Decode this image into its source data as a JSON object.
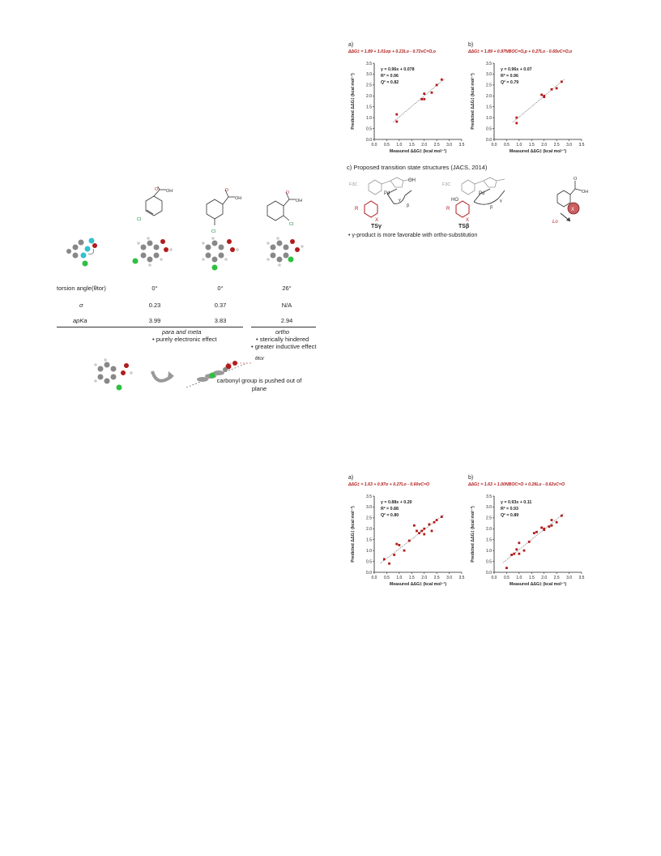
{
  "left_figure": {
    "table": {
      "row_labels": [
        "torsion angle(θtor)",
        "σ",
        "apKa"
      ],
      "columns": [
        {
          "name": "para",
          "substituent": "Cl",
          "torsion": "0°",
          "sigma": "0.23",
          "pka": "3.99"
        },
        {
          "name": "meta",
          "substituent": "Cl",
          "torsion": "0°",
          "sigma": "0.37",
          "pka": "3.83"
        },
        {
          "name": "ortho",
          "substituent": "Cl",
          "torsion": "26°",
          "sigma": "N/A",
          "pka": "2.94"
        }
      ],
      "group_para_meta": "para and meta",
      "group_para_meta_note": "• purely electronic effect",
      "group_ortho": "ortho",
      "group_ortho_note1": "• sterically hindered",
      "group_ortho_note2": "• greater inductive effect"
    },
    "structure_labels": {
      "oh": "OH",
      "o": "O",
      "cl": "Cl"
    },
    "torsion_note": "carbonyl group is pushed out of plane",
    "theta_label": "θtor"
  },
  "top_panels": {
    "a_label": "a)",
    "b_label": "b)",
    "a_equation": "ΔΔG‡ = 1.89 + 1.01σp + 0.23Lo - 0.72νC=O,o",
    "b_equation": "ΔΔG‡ = 1.89 + 0.97NBOC=O,p + 0.27Lo - 0.65νC=O,o",
    "c_label": "c) Proposed transition state structures (JACS, 2014)",
    "c_note": "• γ-product is more favorable with ortho-substitution",
    "ts_gamma": "TSγ",
    "ts_beta": "TSβ",
    "cf3": "F3C",
    "lo": "Lo"
  },
  "bottom_panels": {
    "a_label": "a)",
    "b_label": "b)",
    "a_equation": "ΔΔG‡ = 1.63 + 0.97σ + 0.27Lo - 0.60νC=O",
    "b_equation": "ΔΔG‡ = 1.63 + 1.00NBOC=O + 0.26Lo - 0.62νC=O"
  },
  "chart_data": [
    {
      "type": "scatter",
      "panel": "top-a",
      "xlabel": "Measured ΔΔG‡ (kcal mol⁻¹)",
      "ylabel": "Predicted ΔΔG‡ (kcal mol⁻¹)",
      "xlim": [
        0.0,
        3.5
      ],
      "ylim": [
        0.0,
        3.5
      ],
      "ticks": [
        "0.0",
        "0.5",
        "1.0",
        "1.5",
        "2.0",
        "2.5",
        "3.0",
        "3.5"
      ],
      "stats": [
        "y = 0.96x + 0.078",
        "R² = 0.96",
        "Q² = 0.82"
      ],
      "fit": {
        "slope": 0.96,
        "intercept": 0.078
      },
      "x": [
        0.9,
        0.9,
        1.9,
        2.0,
        2.0,
        2.3,
        2.5,
        2.7
      ],
      "y": [
        1.15,
        0.82,
        1.85,
        1.85,
        2.1,
        2.15,
        2.5,
        2.75
      ]
    },
    {
      "type": "scatter",
      "panel": "top-b",
      "xlabel": "Measured ΔΔG‡ (kcal mol⁻¹)",
      "ylabel": "Predicted ΔΔG‡ (kcal mol⁻¹)",
      "xlim": [
        0.0,
        3.5
      ],
      "ylim": [
        0.0,
        3.5
      ],
      "ticks": [
        "0.0",
        "0.5",
        "1.0",
        "1.5",
        "2.0",
        "2.5",
        "3.0",
        "3.5"
      ],
      "stats": [
        "y = 0.96x + 0.07",
        "R² = 0.96",
        "Q² = 0.79"
      ],
      "fit": {
        "slope": 0.96,
        "intercept": 0.07
      },
      "x": [
        0.9,
        0.9,
        1.9,
        2.0,
        2.0,
        2.3,
        2.5,
        2.7
      ],
      "y": [
        1.0,
        0.75,
        2.05,
        1.95,
        2.0,
        2.3,
        2.35,
        2.65
      ]
    },
    {
      "type": "scatter",
      "panel": "bottom-a",
      "xlabel": "Measured ΔΔG‡ (kcal mol⁻¹)",
      "ylabel": "Predicted ΔΔG‡ (kcal mol⁻¹)",
      "xlim": [
        0.0,
        3.5
      ],
      "ylim": [
        0.0,
        3.5
      ],
      "ticks": [
        "0.0",
        "0.5",
        "1.0",
        "1.5",
        "2.0",
        "2.5",
        "3.0",
        "3.5"
      ],
      "stats": [
        "y = 0.88x + 0.20",
        "R² = 0.88",
        "Q² = 0.80"
      ],
      "fit": {
        "slope": 0.88,
        "intercept": 0.2
      },
      "x": [
        0.4,
        0.6,
        0.8,
        0.9,
        1.0,
        1.2,
        1.4,
        1.6,
        1.7,
        1.8,
        1.9,
        2.0,
        2.0,
        2.2,
        2.3,
        2.4,
        2.5,
        2.7
      ],
      "y": [
        0.6,
        0.4,
        0.8,
        1.3,
        1.25,
        1.0,
        1.45,
        2.15,
        1.9,
        1.8,
        1.9,
        1.75,
        2.0,
        2.2,
        1.9,
        2.3,
        2.4,
        2.55
      ]
    },
    {
      "type": "scatter",
      "panel": "bottom-b",
      "xlabel": "Measured ΔΔG‡ (kcal mol⁻¹)",
      "ylabel": "Predicted ΔΔG‡ (kcal mol⁻¹)",
      "xlim": [
        0.0,
        3.5
      ],
      "ylim": [
        0.0,
        3.5
      ],
      "ticks": [
        "0.0",
        "0.5",
        "1.0",
        "1.5",
        "2.0",
        "2.5",
        "3.0",
        "3.5"
      ],
      "stats": [
        "y = 0.93x + 0.11",
        "R² = 0.93",
        "Q² = 0.89"
      ],
      "fit": {
        "slope": 0.93,
        "intercept": 0.11
      },
      "x": [
        0.5,
        0.7,
        0.8,
        0.9,
        1.0,
        1.0,
        1.2,
        1.4,
        1.6,
        1.7,
        1.9,
        2.0,
        2.0,
        2.2,
        2.3,
        2.3,
        2.5,
        2.7
      ],
      "y": [
        0.2,
        0.8,
        0.85,
        1.05,
        1.35,
        0.85,
        1.0,
        1.4,
        1.8,
        1.85,
        2.05,
        1.95,
        2.0,
        2.1,
        2.4,
        2.15,
        2.3,
        2.6
      ]
    }
  ]
}
